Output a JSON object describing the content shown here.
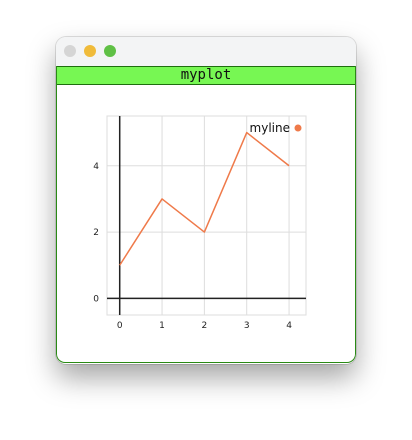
{
  "window": {
    "title": "myplot"
  },
  "colors": {
    "header": "#77f753",
    "line": "#ef7a4a",
    "grid": "#dddddd",
    "axis": "#222222"
  },
  "chart_data": {
    "type": "line",
    "title": "myplot",
    "x": [
      0,
      1,
      2,
      3,
      4
    ],
    "series": [
      {
        "name": "myline",
        "values": [
          1,
          3,
          2,
          5,
          4
        ]
      }
    ],
    "xlim": [
      -0.3,
      4.4
    ],
    "ylim": [
      -0.5,
      5.5
    ],
    "xticks": [
      "0",
      "1",
      "2",
      "3",
      "4"
    ],
    "yticks": [
      "0",
      "2",
      "4"
    ],
    "grid": true,
    "legend_position": "top-right"
  }
}
